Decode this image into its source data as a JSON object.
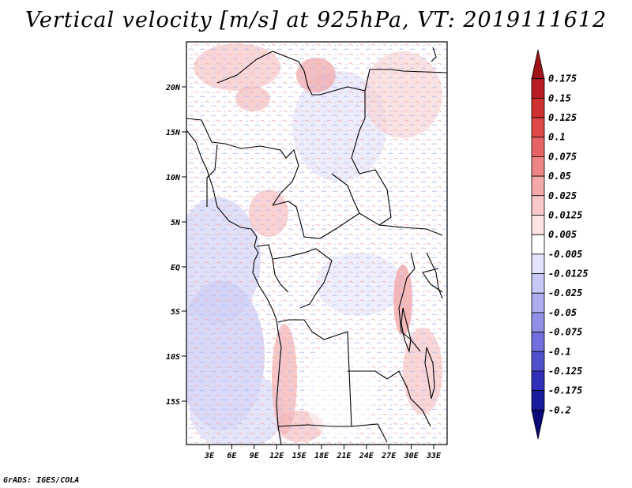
{
  "title": "Vertical velocity [m/s] at 925hPa, VT: 2019111612",
  "footer": "GrADS: IGES/COLA",
  "map": {
    "lat_ticks": [
      "20N",
      "15N",
      "10N",
      "5N",
      "EQ",
      "5S",
      "10S",
      "15S"
    ],
    "lon_ticks": [
      "3E",
      "6E",
      "9E",
      "12E",
      "15E",
      "18E",
      "21E",
      "24E",
      "27E",
      "30E",
      "33E"
    ]
  },
  "colorbar": {
    "labels": [
      "0.175",
      "0.15",
      "0.125",
      "0.1",
      "0.075",
      "0.05",
      "0.025",
      "0.0125",
      "0.005",
      "-0.005",
      "-0.0125",
      "-0.025",
      "-0.05",
      "-0.075",
      "-0.1",
      "-0.125",
      "-0.175",
      "-0.2"
    ],
    "colors": [
      "#a01418",
      "#b81c22",
      "#cf3030",
      "#de4848",
      "#e86464",
      "#ef8484",
      "#f5a8a8",
      "#f9c8c8",
      "#fce4e4",
      "#ffffff",
      "#e2e2fb",
      "#c8c8f6",
      "#acacee",
      "#9090e6",
      "#7070dc",
      "#5050cc",
      "#3030b8",
      "#181c9c",
      "#0a0a78"
    ]
  }
}
